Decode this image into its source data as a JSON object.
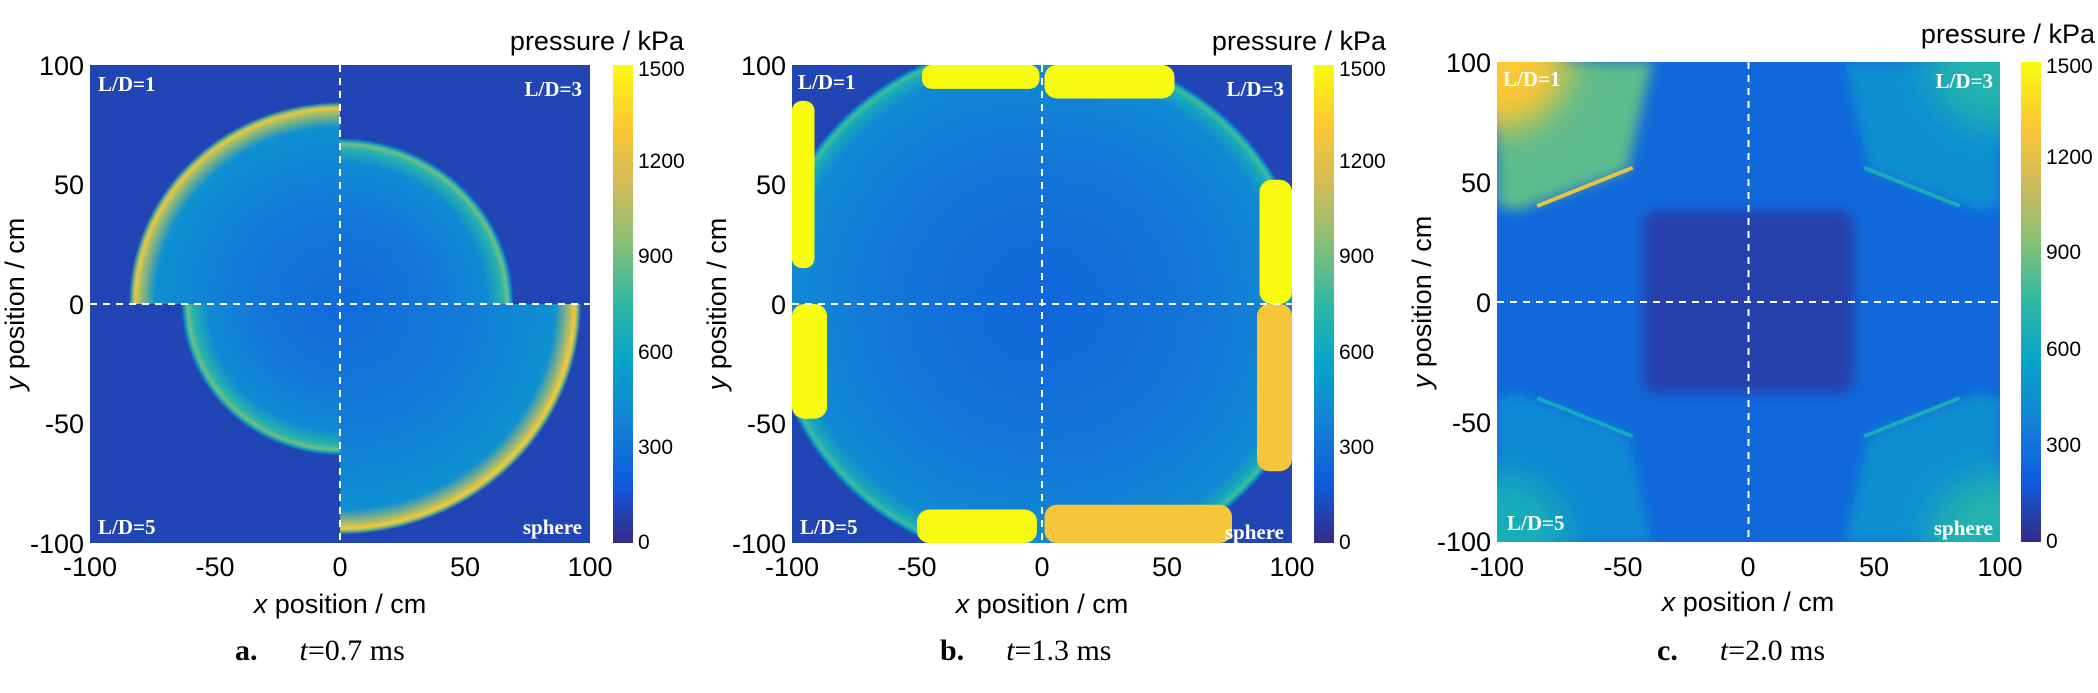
{
  "figure": {
    "shared_colorbar_title": "pressure / kPa",
    "xlabel_var": "x",
    "xlabel_rest": " position / cm",
    "ylabel_var": "y",
    "ylabel_rest": " position / cm"
  },
  "colormap": {
    "name": "parula",
    "stops": [
      "#352a87",
      "#0f5cdd",
      "#1481d6",
      "#06a4ca",
      "#2eb7a4",
      "#87bf77",
      "#d1bb59",
      "#fec832",
      "#f9fb0e"
    ]
  },
  "chart_data": [
    {
      "type": "heatmap",
      "panel": "a",
      "caption_letter": "a.",
      "caption_var": "t",
      "caption_value": "=0.7 ms",
      "time_ms": 0.7,
      "title": "pressure / kPa",
      "xlabel": "x position / cm",
      "ylabel": "y position / cm",
      "xlim": [
        -100,
        100
      ],
      "ylim": [
        -100,
        100
      ],
      "x_ticks": [
        -100,
        -50,
        0,
        50,
        100
      ],
      "y_ticks": [
        -100,
        -50,
        0,
        50,
        100
      ],
      "clim": [
        0,
        1500
      ],
      "colorbar_ticks": [
        0,
        300,
        600,
        900,
        1200,
        1500
      ],
      "quadrant_labels": {
        "top_left": "L/D=1",
        "top_right": "L/D=3",
        "bottom_left": "L/D=5",
        "bottom_right": "sphere"
      },
      "background_kPa": 100,
      "fronts": [
        {
          "quadrant": "top_left",
          "case": "L/D=1",
          "radius_cm": 83,
          "peak_kPa": 1250,
          "inner_kPa": 350
        },
        {
          "quadrant": "top_right",
          "case": "L/D=3",
          "radius_cm": 68,
          "peak_kPa": 900,
          "inner_kPa": 330
        },
        {
          "quadrant": "bottom_left",
          "case": "L/D=5",
          "radius_cm": 62,
          "peak_kPa": 900,
          "inner_kPa": 330
        },
        {
          "quadrant": "bottom_right",
          "case": "sphere",
          "radius_cm": 95,
          "peak_kPa": 1300,
          "inner_kPa": 350
        }
      ]
    },
    {
      "type": "heatmap",
      "panel": "b",
      "caption_letter": "b.",
      "caption_var": "t",
      "caption_value": "=1.3 ms",
      "time_ms": 1.3,
      "title": "pressure / kPa",
      "xlabel": "x position / cm",
      "ylabel": "y position / cm",
      "xlim": [
        -100,
        100
      ],
      "ylim": [
        -100,
        100
      ],
      "x_ticks": [
        -100,
        -50,
        0,
        50,
        100
      ],
      "y_ticks": [
        -100,
        -50,
        0,
        50,
        100
      ],
      "clim": [
        0,
        1500
      ],
      "colorbar_ticks": [
        0,
        300,
        600,
        900,
        1200,
        1500
      ],
      "quadrant_labels": {
        "top_left": "L/D=1",
        "top_right": "L/D=3",
        "bottom_left": "L/D=5",
        "bottom_right": "sphere"
      },
      "background_kPa": 100,
      "wall_reflection_kPa": 1500,
      "fronts": [
        {
          "quadrant": "top_left",
          "case": "L/D=1",
          "radius_cm": 110,
          "peak_kPa": 800,
          "inner_kPa": 320
        },
        {
          "quadrant": "top_right",
          "case": "L/D=3",
          "radius_cm": 106,
          "peak_kPa": 800,
          "inner_kPa": 320
        },
        {
          "quadrant": "bottom_left",
          "case": "L/D=5",
          "radius_cm": 108,
          "peak_kPa": 800,
          "inner_kPa": 320
        },
        {
          "quadrant": "bottom_right",
          "case": "sphere",
          "radius_cm": 112,
          "peak_kPa": 800,
          "inner_kPa": 320
        }
      ]
    },
    {
      "type": "heatmap",
      "panel": "c",
      "caption_letter": "c.",
      "caption_var": "t",
      "caption_value": "=2.0 ms",
      "time_ms": 2.0,
      "title": "pressure / kPa",
      "xlabel": "x position / cm",
      "ylabel": "y position / cm",
      "xlim": [
        -100,
        100
      ],
      "ylim": [
        -100,
        100
      ],
      "x_ticks": [
        -100,
        -50,
        0,
        50,
        100
      ],
      "y_ticks": [
        -100,
        -50,
        0,
        50,
        100
      ],
      "clim": [
        0,
        1500
      ],
      "colorbar_ticks": [
        0,
        300,
        600,
        900,
        1200,
        1500
      ],
      "quadrant_labels": {
        "top_left": "L/D=1",
        "top_right": "L/D=3",
        "bottom_left": "L/D=5",
        "bottom_right": "sphere"
      },
      "background_kPa": 250,
      "center_low_kPa": 80,
      "corner_reflections": [
        {
          "quadrant": "top_left",
          "case": "L/D=1",
          "peak_kPa": 1300
        },
        {
          "quadrant": "top_right",
          "case": "L/D=3",
          "peak_kPa": 700
        },
        {
          "quadrant": "bottom_left",
          "case": "L/D=5",
          "peak_kPa": 650
        },
        {
          "quadrant": "bottom_right",
          "case": "sphere",
          "peak_kPa": 700
        }
      ]
    }
  ]
}
